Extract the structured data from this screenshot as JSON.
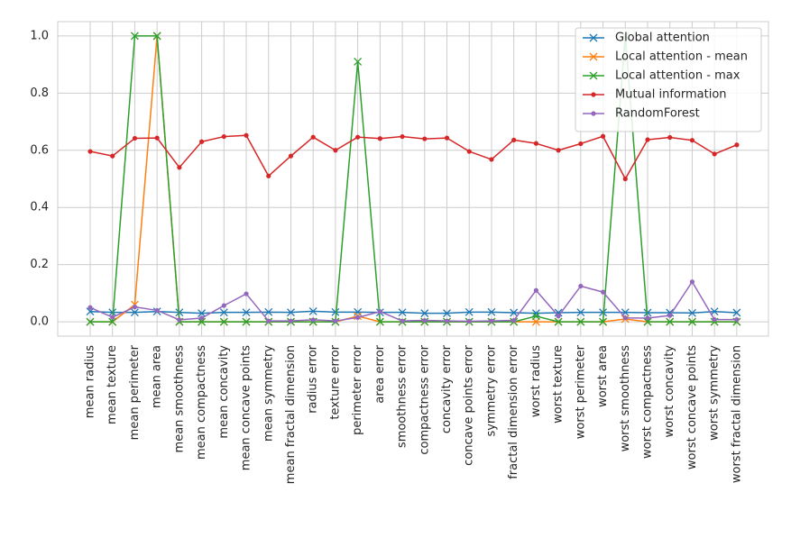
{
  "chart_data": {
    "type": "line",
    "title": "",
    "xlabel": "",
    "ylabel": "",
    "ylim": [
      -0.05,
      1.05
    ],
    "yticks": [
      "0.0",
      "0.2",
      "0.4",
      "0.6",
      "0.8",
      "1.0"
    ],
    "grid": true,
    "legend_position": "top-right",
    "categories": [
      "mean radius",
      "mean texture",
      "mean perimeter",
      "mean area",
      "mean smoothness",
      "mean compactness",
      "mean concavity",
      "mean concave points",
      "mean symmetry",
      "mean fractal dimension",
      "radius error",
      "texture error",
      "perimeter error",
      "area error",
      "smoothness error",
      "compactness error",
      "concavity error",
      "concave points error",
      "symmetry error",
      "fractal dimension error",
      "worst radius",
      "worst texture",
      "worst perimeter",
      "worst area",
      "worst smoothness",
      "worst compactness",
      "worst concavity",
      "worst concave points",
      "worst symmetry",
      "worst fractal dimension"
    ],
    "series": [
      {
        "name": "Global attention",
        "color": "#1f77b4",
        "marker": "x",
        "values": [
          0.036,
          0.033,
          0.033,
          0.036,
          0.033,
          0.03,
          0.033,
          0.033,
          0.034,
          0.033,
          0.037,
          0.034,
          0.034,
          0.033,
          0.033,
          0.03,
          0.03,
          0.034,
          0.034,
          0.032,
          0.03,
          0.032,
          0.033,
          0.033,
          0.033,
          0.032,
          0.032,
          0.031,
          0.036,
          0.032
        ]
      },
      {
        "name": "Local attention - mean",
        "color": "#ff7f0e",
        "marker": "x",
        "values": [
          0.0,
          0.0,
          0.06,
          1.0,
          0.0,
          0.0,
          0.0,
          0.0,
          0.0,
          0.0,
          0.0,
          0.0,
          0.02,
          0.0,
          0.0,
          0.0,
          0.0,
          0.0,
          0.0,
          0.0,
          0.0,
          0.0,
          0.0,
          0.0,
          0.01,
          0.0,
          0.0,
          0.0,
          0.0,
          0.0
        ]
      },
      {
        "name": "Local attention - max",
        "color": "#2ca02c",
        "marker": "x",
        "values": [
          0.0,
          0.0,
          1.0,
          1.0,
          0.0,
          0.0,
          0.0,
          0.0,
          0.0,
          0.0,
          0.0,
          0.0,
          0.91,
          0.0,
          0.0,
          0.0,
          0.0,
          0.0,
          0.0,
          0.0,
          0.02,
          0.0,
          0.0,
          0.0,
          1.0,
          0.0,
          0.0,
          0.0,
          0.0,
          0.0
        ]
      },
      {
        "name": "Mutual information",
        "color": "#d62728",
        "marker": "dot",
        "values": [
          0.596,
          0.58,
          0.642,
          0.643,
          0.54,
          0.63,
          0.648,
          0.652,
          0.51,
          0.58,
          0.646,
          0.6,
          0.646,
          0.641,
          0.648,
          0.64,
          0.643,
          0.596,
          0.568,
          0.636,
          0.624,
          0.6,
          0.623,
          0.649,
          0.5,
          0.637,
          0.645,
          0.635,
          0.587,
          0.619
        ]
      },
      {
        "name": "RandomForest",
        "color": "#9467bd",
        "marker": "dot",
        "values": [
          0.05,
          0.016,
          0.052,
          0.04,
          0.007,
          0.013,
          0.057,
          0.098,
          0.003,
          0.003,
          0.007,
          0.003,
          0.015,
          0.036,
          0.003,
          0.005,
          0.003,
          0.002,
          0.003,
          0.005,
          0.11,
          0.02,
          0.125,
          0.104,
          0.014,
          0.013,
          0.022,
          0.14,
          0.008,
          0.008
        ]
      }
    ]
  }
}
